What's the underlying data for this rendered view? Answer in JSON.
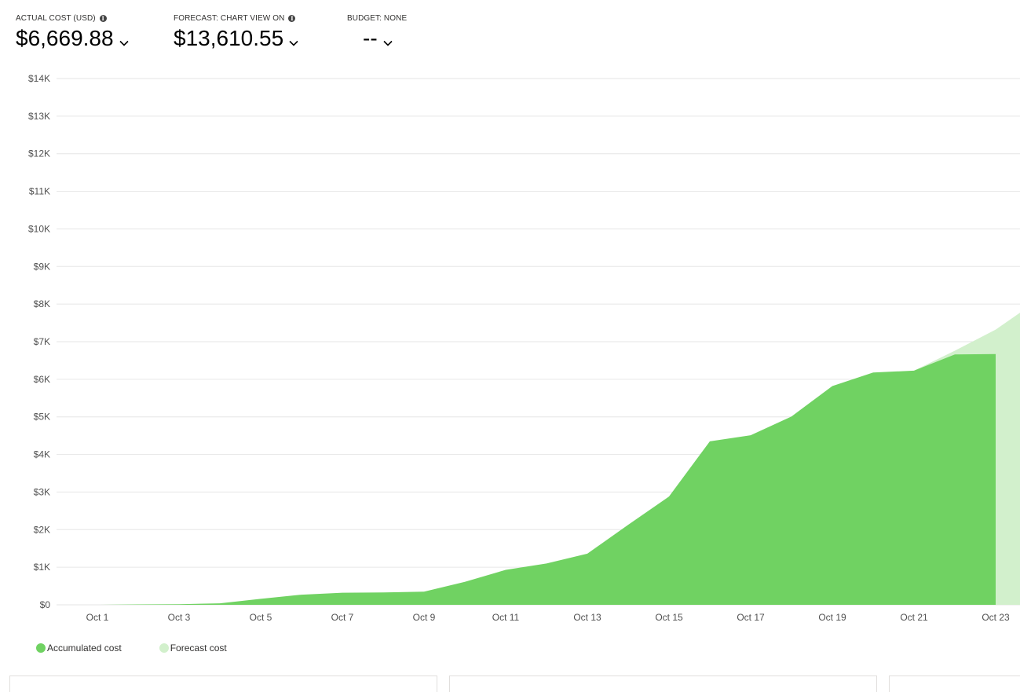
{
  "kpis": {
    "actual": {
      "label": "ACTUAL COST (USD)",
      "value": "$6,669.88"
    },
    "forecast": {
      "label": "FORECAST: CHART VIEW ON",
      "value": "$13,610.55"
    },
    "budget": {
      "label": "BUDGET: NONE",
      "value": "--"
    }
  },
  "icons": {
    "info": "info-icon",
    "chevron": "chevron-down-icon"
  },
  "colors": {
    "actual_fill": "#70d262",
    "forecast_fill": "#d2f0cc",
    "gridline": "#e6e6e6",
    "axis_text": "#505050"
  },
  "chart_data": {
    "type": "area",
    "title": "",
    "xlabel": "",
    "ylabel": "",
    "y_ticks": [
      "$0",
      "$1K",
      "$2K",
      "$3K",
      "$4K",
      "$5K",
      "$6K",
      "$7K",
      "$8K",
      "$9K",
      "$10K",
      "$11K",
      "$12K",
      "$13K",
      "$14K"
    ],
    "ylim": [
      0,
      14000
    ],
    "x_tick_labels": [
      "Oct 1",
      "Oct 3",
      "Oct 5",
      "Oct 7",
      "Oct 9",
      "Oct 11",
      "Oct 13",
      "Oct 15",
      "Oct 17",
      "Oct 19",
      "Oct 21",
      "Oct 23"
    ],
    "x_days": [
      1,
      3,
      5,
      7,
      9,
      11,
      13,
      15,
      17,
      19,
      21,
      23
    ],
    "xlim": [
      0,
      23.6
    ],
    "grid": true,
    "legend_placement": "bottom-left",
    "series": [
      {
        "name": "Accumulated cost",
        "x": [
          1,
          2,
          3,
          4,
          5,
          6,
          7,
          8,
          9,
          10,
          11,
          12,
          13,
          14,
          15,
          16,
          17,
          18,
          19,
          20,
          21,
          22,
          23
        ],
        "values": [
          0,
          10,
          15,
          40,
          160,
          270,
          320,
          330,
          350,
          610,
          930,
          1100,
          1360,
          2130,
          2880,
          4350,
          4510,
          5010,
          5820,
          6180,
          6230,
          6660,
          6670
        ]
      },
      {
        "name": "Forecast cost",
        "x": [
          21,
          22,
          23,
          23.6
        ],
        "values": [
          6230,
          6760,
          7320,
          7770
        ]
      }
    ]
  }
}
